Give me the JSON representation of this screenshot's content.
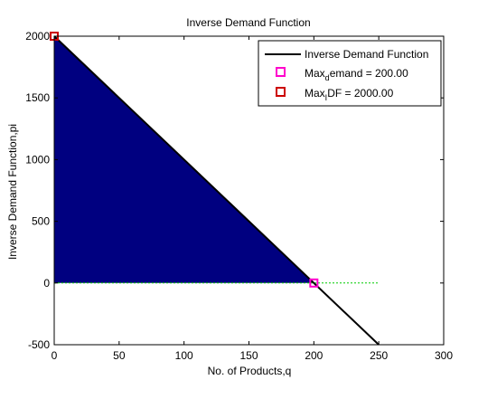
{
  "chart_data": {
    "type": "line",
    "title": "Inverse Demand Function",
    "xlabel": "No. of Products,q",
    "ylabel": "Inverse Demand Function,pi",
    "xlim": [
      0,
      300
    ],
    "ylim": [
      -500,
      2000
    ],
    "xticks": [
      "0",
      "50",
      "100",
      "150",
      "200",
      "250",
      "300"
    ],
    "yticks": [
      "-500",
      "0",
      "500",
      "1000",
      "1500",
      "2000"
    ],
    "grid": false,
    "legend_position": "top-right",
    "series": [
      {
        "name": "Inverse Demand Function",
        "color": "#000000",
        "x": [
          0,
          250
        ],
        "y": [
          2000,
          -500
        ]
      }
    ],
    "fill": {
      "color": "#000080",
      "x": [
        0,
        200,
        0
      ],
      "y": [
        2000,
        0,
        0
      ]
    },
    "reference_line": {
      "color": "#00cc00",
      "x": [
        0,
        250
      ],
      "y": [
        0,
        0
      ]
    },
    "markers": [
      {
        "label": "Max_demand = 200.00",
        "sub_prefix": "Max",
        "sub": "d",
        "suffix": "emand = 200.00",
        "x": 200,
        "y": 0,
        "color": "#ff00cc"
      },
      {
        "label": "Max_IDF = 2000.00",
        "sub_prefix": "Max",
        "sub": "I",
        "suffix": "DF = 2000.00",
        "x": 0,
        "y": 2000,
        "color": "#cc0000"
      }
    ]
  }
}
